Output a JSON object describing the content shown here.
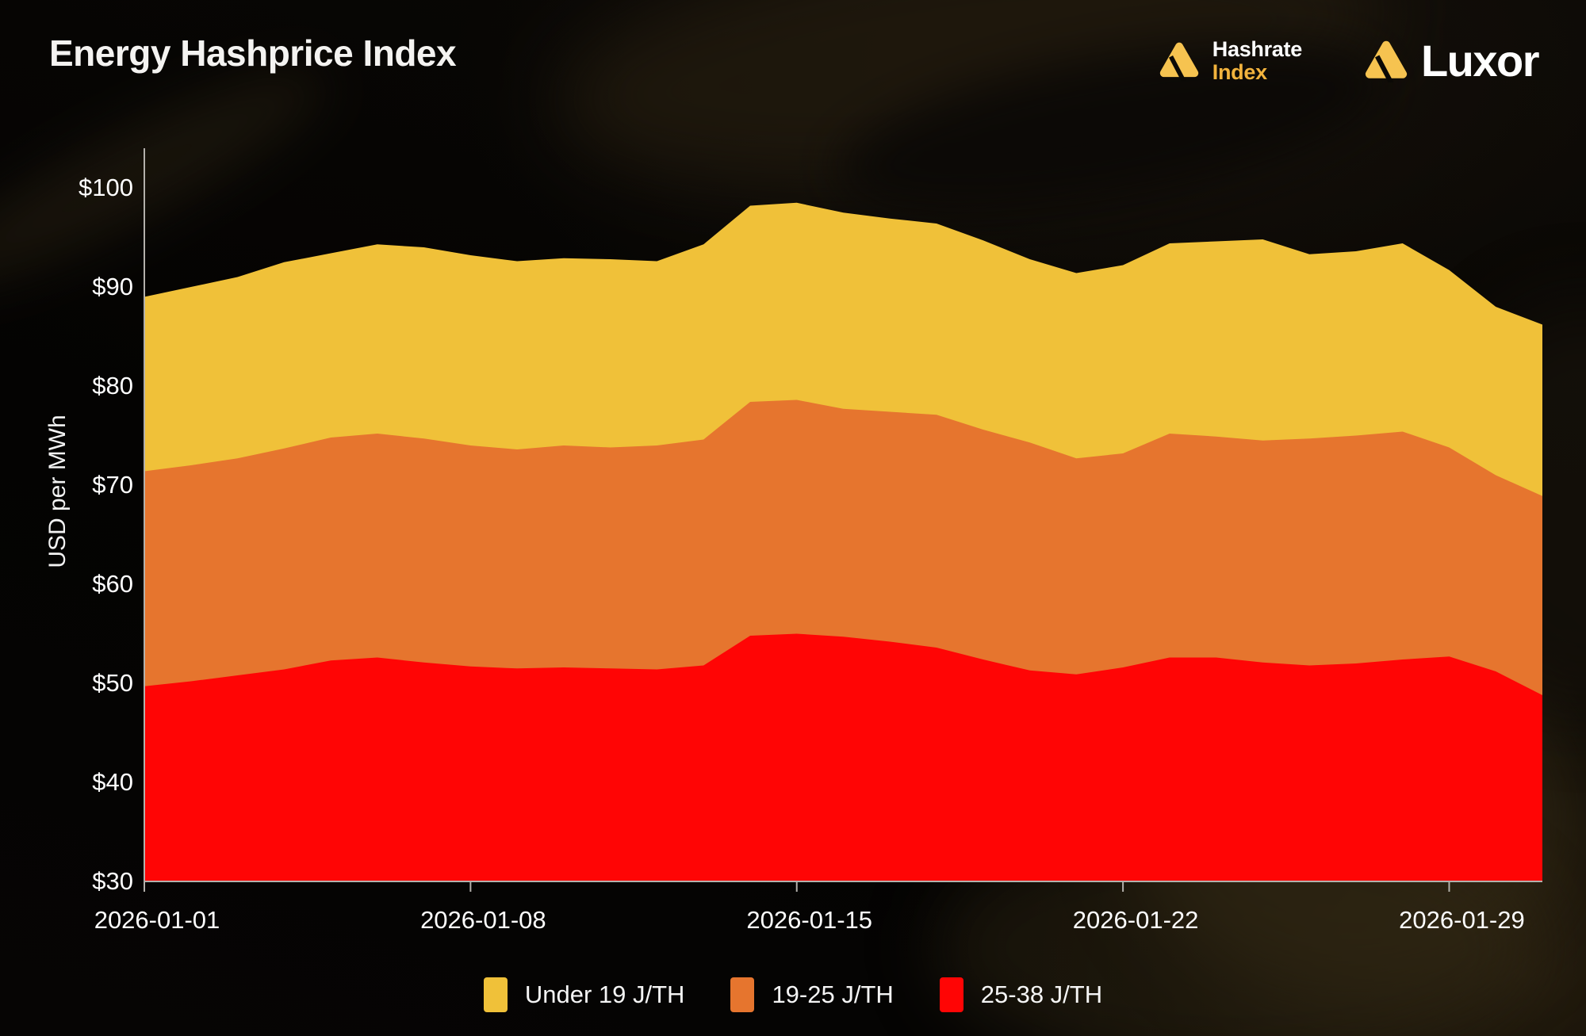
{
  "header": {
    "title": "Energy Hashprice Index",
    "logos": {
      "hashrate_line1": "Hashrate",
      "hashrate_line2": "Index",
      "luxor": "Luxor"
    }
  },
  "chart_data": {
    "type": "area",
    "overlay": true,
    "title": "Energy Hashprice Index",
    "xlabel": "",
    "ylabel": "USD per MWh",
    "ylim": [
      30,
      104
    ],
    "ytick_prefix": "$",
    "yticks": [
      30,
      40,
      50,
      60,
      70,
      80,
      90,
      100
    ],
    "grid": false,
    "legend_position": "bottom-center",
    "x": [
      "2026-01-01",
      "2026-01-02",
      "2026-01-03",
      "2026-01-04",
      "2026-01-05",
      "2026-01-06",
      "2026-01-07",
      "2026-01-08",
      "2026-01-09",
      "2026-01-10",
      "2026-01-11",
      "2026-01-12",
      "2026-01-13",
      "2026-01-14",
      "2026-01-15",
      "2026-01-16",
      "2026-01-17",
      "2026-01-18",
      "2026-01-19",
      "2026-01-20",
      "2026-01-21",
      "2026-01-22",
      "2026-01-23",
      "2026-01-24",
      "2026-01-25",
      "2026-01-26",
      "2026-01-27",
      "2026-01-28",
      "2026-01-29",
      "2026-01-30",
      "2026-01-31"
    ],
    "xticks": [
      "2026-01-01",
      "2026-01-08",
      "2026-01-15",
      "2026-01-22",
      "2026-01-29"
    ],
    "series": [
      {
        "name": "Under 19 J/TH",
        "color": "#F0C139",
        "values": [
          89.0,
          90.0,
          91.0,
          92.5,
          93.4,
          94.3,
          94.0,
          93.2,
          92.6,
          92.9,
          92.8,
          92.6,
          94.3,
          98.2,
          98.5,
          97.5,
          96.9,
          96.4,
          94.7,
          92.8,
          91.4,
          92.2,
          94.4,
          94.6,
          94.8,
          93.3,
          93.6,
          94.4,
          91.7,
          88.0,
          86.2
        ]
      },
      {
        "name": "19-25 J/TH",
        "color": "#E6752E",
        "values": [
          71.4,
          72.0,
          72.7,
          73.7,
          74.8,
          75.2,
          74.7,
          74.0,
          73.6,
          74.0,
          73.8,
          74.0,
          74.6,
          78.4,
          78.6,
          77.7,
          77.4,
          77.1,
          75.6,
          74.3,
          72.7,
          73.2,
          75.2,
          74.9,
          74.5,
          74.7,
          75.0,
          75.4,
          73.8,
          71.0,
          68.9
        ]
      },
      {
        "name": "25-38 J/TH",
        "color": "#FF0505",
        "values": [
          49.7,
          50.2,
          50.8,
          51.4,
          52.3,
          52.6,
          52.1,
          51.7,
          51.5,
          51.6,
          51.5,
          51.4,
          51.8,
          54.8,
          55.0,
          54.7,
          54.2,
          53.6,
          52.4,
          51.3,
          50.9,
          51.6,
          52.6,
          52.6,
          52.1,
          51.8,
          52.0,
          52.4,
          52.7,
          51.2,
          48.8
        ]
      }
    ]
  },
  "colors": {
    "background": "#050403",
    "axis_line": "#b3b0ab",
    "text": "#ffffff",
    "brand_gold": "#F6C350",
    "series_yellow": "#F0C139",
    "series_orange": "#E6752E",
    "series_red": "#FF0505"
  }
}
